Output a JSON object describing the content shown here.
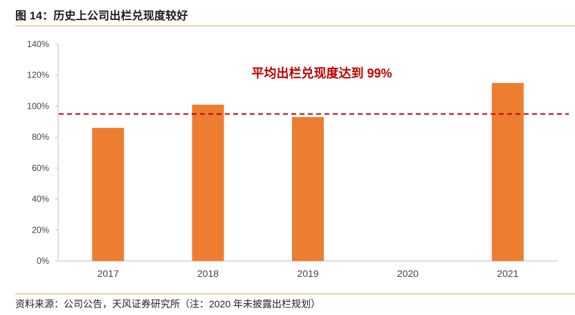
{
  "figure": {
    "title": "图 14：历史上公司出栏兑现度较好",
    "source": "资料来源：公司公告，天风证券研究所（注：2020 年未披露出栏规划）"
  },
  "chart_data": {
    "type": "bar",
    "categories": [
      "2017",
      "2018",
      "2019",
      "2020",
      "2021"
    ],
    "values": [
      86,
      101,
      93,
      null,
      115
    ],
    "ylim": [
      0,
      140
    ],
    "yticks": [
      0,
      20,
      40,
      60,
      80,
      100,
      120,
      140
    ],
    "ytick_labels": [
      "0%",
      "20%",
      "40%",
      "60%",
      "80%",
      "100%",
      "120%",
      "140%"
    ],
    "reference_line": {
      "value": 95,
      "style": "dashed",
      "color": "#c00000"
    },
    "annotation": "平均出栏兑现度达到 99%",
    "bar_color": "#ed7d31",
    "axis_color": "#bfbfbf",
    "grid": false,
    "legend": "none"
  }
}
